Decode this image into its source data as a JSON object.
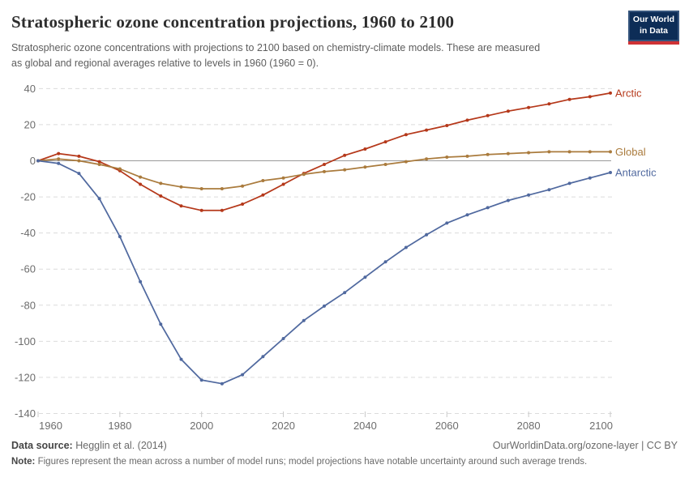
{
  "header": {
    "title": "Stratospheric ozone concentration projections, 1960 to 2100",
    "subtitle": "Stratospheric ozone concentrations with projections to 2100 based on chemistry-climate models. These are measured as global and regional averages relative to levels in 1960 (1960 = 0).",
    "logo": {
      "line1": "Our World",
      "line2": "in Data"
    }
  },
  "chart_data": {
    "type": "line",
    "title": "Stratospheric ozone concentration projections, 1960 to 2100",
    "xlabel": "",
    "ylabel": "",
    "x": [
      1960,
      1965,
      1970,
      1975,
      1980,
      1985,
      1990,
      1995,
      2000,
      2005,
      2010,
      2015,
      2020,
      2025,
      2030,
      2035,
      2040,
      2045,
      2050,
      2055,
      2060,
      2065,
      2070,
      2075,
      2080,
      2085,
      2090,
      2095,
      2100
    ],
    "series": [
      {
        "name": "Arctic",
        "color": "#b5381a",
        "values": [
          0,
          4,
          2.5,
          -0.5,
          -5.5,
          -13,
          -19.5,
          -25,
          -27.5,
          -27.5,
          -24,
          -19,
          -13,
          -7,
          -2,
          3,
          6.5,
          10.5,
          14.5,
          17,
          19.5,
          22.5,
          25,
          27.5,
          29.5,
          31.5,
          34,
          35.5,
          37.5
        ]
      },
      {
        "name": "Global",
        "color": "#aa7b3d",
        "values": [
          0,
          1,
          0,
          -2,
          -4.5,
          -9,
          -12.5,
          -14.5,
          -15.5,
          -15.5,
          -14,
          -11,
          -9.5,
          -7.5,
          -6,
          -5,
          -3.5,
          -2,
          -0.5,
          1,
          2,
          2.5,
          3.5,
          4,
          4.5,
          5,
          5,
          5,
          5
        ]
      },
      {
        "name": "Antarctic",
        "color": "#50699f",
        "values": [
          0,
          -1.5,
          -7,
          -21,
          -42,
          -67,
          -90.5,
          -110,
          -121.5,
          -123.5,
          -118.5,
          -108.5,
          -98.5,
          -88.5,
          -80.5,
          -73,
          -64.5,
          -56,
          -48,
          -41,
          -34.5,
          -30,
          -26,
          -22,
          -19,
          -16,
          -12.5,
          -9.5,
          -6.5
        ]
      }
    ],
    "ylim": [
      -140,
      40
    ],
    "yticks": [
      40,
      20,
      0,
      -20,
      -40,
      -60,
      -80,
      -100,
      -120,
      -140
    ],
    "xticks": [
      1960,
      1980,
      2000,
      2020,
      2040,
      2060,
      2080,
      2100
    ],
    "grid": "horizontal dashed; solid line at 0",
    "legend_position": "right-end-labels"
  },
  "footer": {
    "source_label": "Data source:",
    "source_value": "Hegglin et al. (2014)",
    "rights": "OurWorldinData.org/ozone-layer | CC BY",
    "note_label": "Note:",
    "note_value": "Figures represent the mean across a number of model runs; model projections have notable uncertainty around such average trends."
  },
  "colors": {
    "title": "#2d2d2d",
    "subtitle": "#5d5d5d",
    "grid": "#dcdcdc",
    "zero_line": "#9a9a9a",
    "tick_label": "#6d6d6d",
    "logo_bg": "#0d2d57",
    "logo_bar": "#cf3235"
  }
}
